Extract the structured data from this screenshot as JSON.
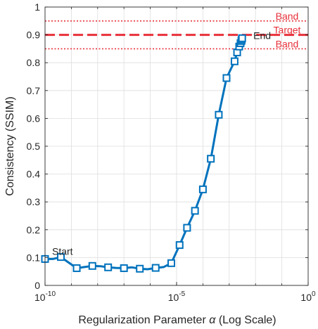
{
  "chart_data": {
    "type": "line",
    "title": "",
    "xlabel_text": "Regularization  Parameter",
    "xlabel_symbol": "α",
    "xlabel_suffix": "(Log  Scale)",
    "ylabel": "Consistency (SSIM)",
    "xscale": "log",
    "xlim": [
      1e-10,
      1
    ],
    "ylim": [
      0,
      1
    ],
    "grid": true,
    "x_ticks": [
      {
        "value": 1e-10,
        "base": "10",
        "exp": "-10"
      },
      {
        "value": 1e-05,
        "base": "10",
        "exp": "-5"
      },
      {
        "value": 1,
        "base": "10",
        "exp": "0"
      }
    ],
    "y_ticks": [
      "0",
      "0.1",
      "0.2",
      "0.3",
      "0.4",
      "0.5",
      "0.6",
      "0.7",
      "0.8",
      "0.9",
      "1"
    ],
    "series": [
      {
        "color": "#0072BD",
        "marker": "square",
        "x": [
          1e-10,
          2e-10,
          4e-10,
          7.9e-10,
          1.6e-09,
          3.1e-09,
          6.3e-09,
          1.3e-08,
          2.5e-08,
          5e-08,
          1e-07,
          2e-07,
          4e-07,
          7.9e-07,
          1.6e-06,
          3.2e-06,
          6.3e-06,
          1.3e-05,
          2.5e-05,
          5e-05,
          0.0001,
          0.0002,
          0.0004,
          0.00079,
          0.0016,
          0.002,
          0.0024,
          0.0027,
          0.0029,
          0.003,
          0.0031
        ],
        "y": [
          0.095,
          0.095,
          0.102,
          0.082,
          0.062,
          0.066,
          0.07,
          0.069,
          0.065,
          0.063,
          0.062,
          0.065,
          0.06,
          0.058,
          0.063,
          0.066,
          0.08,
          0.145,
          0.207,
          0.268,
          0.345,
          0.455,
          0.613,
          0.745,
          0.805,
          0.837,
          0.858,
          0.87,
          0.878,
          0.883,
          0.888
        ],
        "marker_indices": [
          0,
          2,
          4,
          6,
          8,
          10,
          12,
          14,
          16,
          17,
          18,
          19,
          20,
          21,
          22,
          23,
          24,
          25,
          26,
          27,
          28,
          29,
          30
        ]
      }
    ],
    "reference_lines": [
      {
        "label": "Band",
        "y": 0.95,
        "style": "dotted",
        "color": "#e8303a"
      },
      {
        "label": "Target",
        "y": 0.9,
        "style": "dashed",
        "color": "#e8303a"
      },
      {
        "label": "Band",
        "y": 0.85,
        "style": "dotted",
        "color": "#e8303a"
      }
    ],
    "annotations": [
      {
        "text": "Start",
        "x": 1e-10,
        "y": 0.095
      },
      {
        "text": "End",
        "x": 0.0031,
        "y": 0.888
      }
    ]
  }
}
